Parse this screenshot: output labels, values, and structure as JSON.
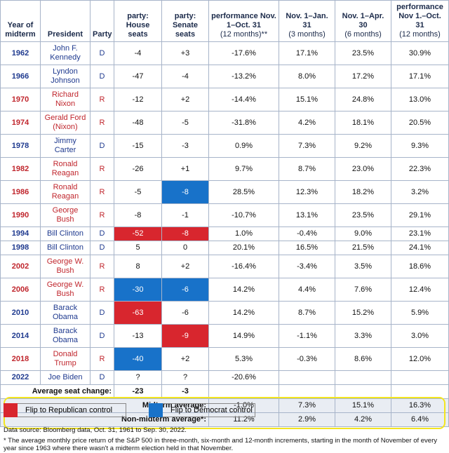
{
  "table": {
    "header": [
      "Year of midterm",
      "President",
      "Party",
      "party: House seats",
      "party: Senate seats",
      {
        "text": "performance Nov. 1–Oct. 31",
        "note": "(12 months)**"
      },
      {
        "text": "Nov. 1–Jan. 31",
        "note": "(3 months)"
      },
      {
        "text": "Nov. 1–Apr. 30",
        "note": "(6 months)"
      },
      {
        "text": "performance Nov 1.–Oct. 31",
        "note": "(12 months)"
      }
    ],
    "rows": [
      [
        "1962",
        "John F. Kennedy",
        "D",
        "-4",
        "+3",
        "-17.6%",
        "17.1%",
        "23.5%",
        "30.9%"
      ],
      [
        "1966",
        "Lyndon Johnson",
        "D",
        "-47",
        "-4",
        "-13.2%",
        "8.0%",
        "17.2%",
        "17.1%"
      ],
      [
        "1970",
        "Richard Nixon",
        "R",
        "-12",
        "+2",
        "-14.4%",
        "15.1%",
        "24.8%",
        "13.0%"
      ],
      [
        "1974",
        "Gerald Ford (Nixon)",
        "R",
        "-48",
        "-5",
        "-31.8%",
        "4.2%",
        "18.1%",
        "20.5%"
      ],
      [
        "1978",
        "Jimmy Carter",
        "D",
        "-15",
        "-3",
        "0.9%",
        "7.3%",
        "9.2%",
        "9.3%"
      ],
      [
        "1982",
        "Ronald Reagan",
        "R",
        "-26",
        "+1",
        "9.7%",
        "8.7%",
        "23.0%",
        "22.3%"
      ],
      [
        "1986",
        "Ronald Reagan",
        "R",
        "-5",
        "-8",
        "28.5%",
        "12.3%",
        "18.2%",
        "3.2%"
      ],
      [
        "1990",
        "George Bush",
        "R",
        "-8",
        "-1",
        "-10.7%",
        "13.1%",
        "23.5%",
        "29.1%"
      ],
      [
        "1994",
        "Bill Clinton",
        "D",
        "-52",
        "-8",
        "1.0%",
        "-0.4%",
        "9.0%",
        "23.1%"
      ],
      [
        "1998",
        "Bill Clinton",
        "D",
        "5",
        "0",
        "20.1%",
        "16.5%",
        "21.5%",
        "24.1%"
      ],
      [
        "2002",
        "George W. Bush",
        "R",
        "8",
        "+2",
        "-16.4%",
        "-3.4%",
        "3.5%",
        "18.6%"
      ],
      [
        "2006",
        "George W. Bush",
        "R",
        "-30",
        "-6",
        "14.2%",
        "4.4%",
        "7.6%",
        "12.4%"
      ],
      [
        "2010",
        "Barack Obama",
        "D",
        "-63",
        "-6",
        "14.2%",
        "8.7%",
        "15.2%",
        "5.9%"
      ],
      [
        "2014",
        "Barack Obama",
        "D",
        "-13",
        "-9",
        "14.9%",
        "-1.1%",
        "3.3%",
        "3.0%"
      ],
      [
        "2018",
        "Donald Trump",
        "R",
        "-40",
        "+2",
        "5.3%",
        "-0.3%",
        "8.6%",
        "12.0%"
      ],
      [
        "2022",
        "Joe Biden",
        "D",
        "?",
        "?",
        "-20.6%"
      ]
    ],
    "average_seat_change": {
      "label": "Average seat change:",
      "values": [
        "-23",
        "-3"
      ]
    },
    "summary": [
      {
        "label": "Midterm average:",
        "values": [
          "-1.0%",
          "7.3%",
          "15.1%",
          "16.3%"
        ]
      },
      {
        "label": "Non-midterm average*:",
        "values": [
          "11.2%",
          "2.9%",
          "4.2%",
          "6.4%"
        ]
      }
    ]
  },
  "party_colors": {
    "D": "#1f3a8f",
    "R": "#c0262d"
  },
  "legend": [
    {
      "label": "Flip to Republican control",
      "color": "#d8262e",
      "cells": [
        [
          8,
          3
        ],
        [
          8,
          4
        ],
        [
          12,
          3
        ],
        [
          13,
          4
        ]
      ]
    },
    {
      "label": "Flip to Democrat control",
      "color": "#1872c9",
      "cells": [
        [
          6,
          4
        ],
        [
          11,
          3
        ],
        [
          11,
          4
        ],
        [
          14,
          3
        ]
      ]
    }
  ],
  "footnotes": [
    "Data source: Bloomberg data, Oct. 31, 1961 to Sep. 30, 2022.",
    "* The average monthly price return of the S&P 500 in three-month, six-month and 12-month increments, starting in the month of November of every year since 1963 where there wasn't a midterm election held in that November."
  ]
}
